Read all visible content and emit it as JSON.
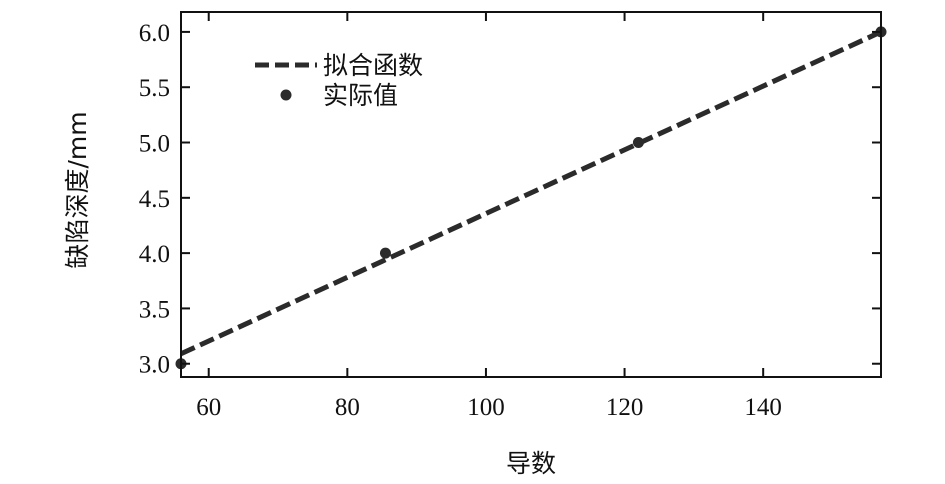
{
  "chart_data": {
    "type": "scatter",
    "title": "",
    "xlabel": "导数",
    "ylabel": "缺陷深度/mm",
    "xlim": [
      56,
      157
    ],
    "ylim": [
      2.88,
      6.18
    ],
    "x_ticks": [
      60,
      80,
      100,
      120,
      140
    ],
    "y_ticks": [
      3.0,
      3.5,
      4.0,
      4.5,
      5.0,
      5.5,
      6.0
    ],
    "x_tick_labels": [
      "60",
      "80",
      "100",
      "120",
      "140"
    ],
    "y_tick_labels": [
      "3.0",
      "3.5",
      "4.0",
      "4.5",
      "5.0",
      "5.5",
      "6.0"
    ],
    "grid": false,
    "legend_position": "top-left",
    "series": [
      {
        "name": "拟合函数",
        "kind": "line",
        "style": "dashed",
        "color": "#2b2b2b",
        "x": [
          56,
          157
        ],
        "y": [
          3.09,
          6.0
        ]
      },
      {
        "name": "实际值",
        "kind": "scatter",
        "color": "#2b2b2b",
        "x": [
          56,
          85.5,
          122,
          157
        ],
        "y": [
          3.0,
          4.0,
          5.0,
          6.0
        ]
      }
    ]
  }
}
